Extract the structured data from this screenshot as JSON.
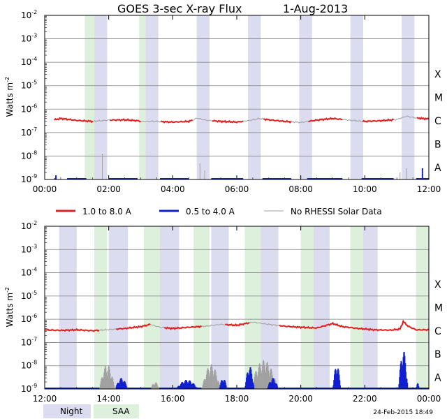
{
  "title": "GOES 3-sec X-ray Flux",
  "date": "1-Aug-2013",
  "generated": "24-Feb-2015 18:49",
  "ylabel_main": "Watts m",
  "ylabel_exp": "-2",
  "legend": {
    "items": [
      {
        "label": "1.0 to 8.0 A",
        "color": "#e02020"
      },
      {
        "label": "0.5 to 4.0 A",
        "color": "#1020d0"
      },
      {
        "label": "No RHESSI Solar Data",
        "color": "#a0a0a0"
      }
    ],
    "bottom_items": [
      {
        "label": "Night",
        "color": "#dcdcf0"
      },
      {
        "label": "SAA",
        "color": "#dcf0dc"
      }
    ]
  },
  "classes": [
    "X",
    "M",
    "C",
    "B",
    "A"
  ],
  "colors": {
    "night": "#dcdcf0",
    "saa": "#dcf0dc",
    "long": "#e02020",
    "short": "#1020d0",
    "nodata": "#a0a0a0",
    "grid": "#808080"
  },
  "chart_data": [
    {
      "type": "line",
      "xlim_hours": [
        0,
        12
      ],
      "x_ticks": [
        "00:00",
        "02:00",
        "04:00",
        "06:00",
        "08:00",
        "10:00",
        "12:00"
      ],
      "y_scale": "log",
      "ylim": [
        1e-09,
        0.01
      ],
      "y_tick_exponents": [
        -2,
        -3,
        -4,
        -5,
        -6,
        -7,
        -8,
        -9
      ],
      "night_hours": [
        [
          1.55,
          1.95
        ],
        [
          3.15,
          3.55
        ],
        [
          4.75,
          5.15
        ],
        [
          6.35,
          6.75
        ],
        [
          7.95,
          8.35
        ],
        [
          9.55,
          9.95
        ],
        [
          11.15,
          11.55
        ]
      ],
      "saa_hours": [
        [
          1.25,
          1.55
        ],
        [
          2.95,
          3.15
        ]
      ],
      "long_series": [
        {
          "x": 0.3,
          "y": 3.5e-07
        },
        {
          "x": 0.5,
          "y": 4e-07
        },
        {
          "x": 1.0,
          "y": 3.3e-07
        },
        {
          "x": 1.5,
          "y": 3e-07
        },
        {
          "x": 2.0,
          "y": 3.4e-07
        },
        {
          "x": 2.5,
          "y": 3.5e-07
        },
        {
          "x": 2.9,
          "y": 3.2e-07
        },
        {
          "x": 3.0,
          "y": 3e-07
        },
        {
          "x": 3.5,
          "y": 3e-07
        },
        {
          "x": 4.0,
          "y": 2.8e-07
        },
        {
          "x": 4.5,
          "y": 3e-07
        },
        {
          "x": 4.65,
          "y": 3.5e-07
        },
        {
          "x": 4.75,
          "y": 4.2e-07
        },
        {
          "x": 5.0,
          "y": 3.4e-07
        },
        {
          "x": 5.5,
          "y": 3e-07
        },
        {
          "x": 6.0,
          "y": 2.8e-07
        },
        {
          "x": 6.4,
          "y": 3.3e-07
        },
        {
          "x": 6.7,
          "y": 4e-07
        },
        {
          "x": 7.0,
          "y": 3.5e-07
        },
        {
          "x": 7.5,
          "y": 3e-07
        },
        {
          "x": 8.0,
          "y": 2.7e-07
        },
        {
          "x": 8.5,
          "y": 3.4e-07
        },
        {
          "x": 9.0,
          "y": 4e-07
        },
        {
          "x": 9.5,
          "y": 3.4e-07
        },
        {
          "x": 10.0,
          "y": 3e-07
        },
        {
          "x": 10.5,
          "y": 3.2e-07
        },
        {
          "x": 11.0,
          "y": 3.6e-07
        },
        {
          "x": 11.3,
          "y": 5e-07
        },
        {
          "x": 11.6,
          "y": 4.2e-07
        },
        {
          "x": 12.0,
          "y": 3.8e-07
        }
      ],
      "nodata_spans_hours": [
        [
          1.5,
          2.0
        ],
        [
          3.0,
          3.6
        ],
        [
          4.6,
          5.2
        ],
        [
          6.2,
          6.8
        ],
        [
          7.7,
          8.2
        ],
        [
          9.3,
          9.9
        ],
        [
          10.9,
          11.6
        ]
      ],
      "short_segments": [
        [
          0.3,
          0.35
        ],
        [
          0.7,
          1.3
        ],
        [
          2.0,
          2.9
        ],
        [
          3.6,
          4.5
        ],
        [
          5.2,
          6.2
        ],
        [
          6.8,
          7.7
        ],
        [
          8.2,
          9.3
        ],
        [
          9.9,
          10.9
        ],
        [
          11.6,
          12.0
        ]
      ],
      "short_spikes": [
        {
          "x": 0.35,
          "y": 1.5e-09
        },
        {
          "x": 11.8,
          "y": 3e-09
        }
      ],
      "nodata_spikes": [
        {
          "x": 1.8,
          "y": 1.2e-08
        },
        {
          "x": 4.85,
          "y": 5e-09
        },
        {
          "x": 5.0,
          "y": 2.5e-09
        },
        {
          "x": 11.1,
          "y": 2e-09
        },
        {
          "x": 11.3,
          "y": 3e-09
        }
      ]
    },
    {
      "type": "line",
      "xlim_hours": [
        12,
        24
      ],
      "x_ticks": [
        "12:00",
        "14:00",
        "16:00",
        "18:00",
        "20:00",
        "22:00",
        "00:00"
      ],
      "y_scale": "log",
      "ylim": [
        1e-09,
        0.01
      ],
      "y_tick_exponents": [
        -2,
        -3,
        -4,
        -5,
        -6,
        -7,
        -8,
        -9
      ],
      "night_hours": [
        [
          12.45,
          13.0
        ],
        [
          14.0,
          14.6
        ],
        [
          15.6,
          16.2
        ],
        [
          17.2,
          17.75
        ],
        [
          18.75,
          19.3
        ],
        [
          20.35,
          20.9
        ],
        [
          21.95,
          22.4
        ]
      ],
      "saa_hours": [
        [
          13.55,
          13.95
        ],
        [
          15.1,
          15.6
        ],
        [
          16.65,
          17.15
        ],
        [
          18.25,
          18.75
        ],
        [
          20.0,
          20.4
        ],
        [
          21.55,
          21.95
        ],
        [
          23.6,
          24.0
        ]
      ],
      "long_series": [
        {
          "x": 12.0,
          "y": 3.5e-07
        },
        {
          "x": 12.5,
          "y": 3.3e-07
        },
        {
          "x": 13.0,
          "y": 3.5e-07
        },
        {
          "x": 13.5,
          "y": 3.2e-07
        },
        {
          "x": 14.0,
          "y": 3.6e-07
        },
        {
          "x": 14.5,
          "y": 4e-07
        },
        {
          "x": 15.0,
          "y": 4.8e-07
        },
        {
          "x": 15.3,
          "y": 6e-07
        },
        {
          "x": 15.6,
          "y": 4.5e-07
        },
        {
          "x": 16.0,
          "y": 4e-07
        },
        {
          "x": 16.5,
          "y": 4.5e-07
        },
        {
          "x": 17.0,
          "y": 5e-07
        },
        {
          "x": 17.5,
          "y": 6e-07
        },
        {
          "x": 18.0,
          "y": 5.5e-07
        },
        {
          "x": 18.5,
          "y": 7.5e-07
        },
        {
          "x": 19.0,
          "y": 6e-07
        },
        {
          "x": 19.5,
          "y": 5e-07
        },
        {
          "x": 20.0,
          "y": 4.5e-07
        },
        {
          "x": 20.5,
          "y": 4.2e-07
        },
        {
          "x": 21.0,
          "y": 6.5e-07
        },
        {
          "x": 21.3,
          "y": 4.8e-07
        },
        {
          "x": 21.8,
          "y": 4e-07
        },
        {
          "x": 22.3,
          "y": 3.5e-07
        },
        {
          "x": 22.8,
          "y": 3.4e-07
        },
        {
          "x": 23.1,
          "y": 3.8e-07
        },
        {
          "x": 23.2,
          "y": 8e-07
        },
        {
          "x": 23.35,
          "y": 5e-07
        },
        {
          "x": 23.6,
          "y": 3.5e-07
        },
        {
          "x": 24.0,
          "y": 3.5e-07
        }
      ],
      "nodata_spans_hours": [
        [
          13.7,
          14.2
        ],
        [
          15.3,
          15.7
        ],
        [
          16.9,
          17.6
        ],
        [
          18.4,
          19.3
        ]
      ],
      "short_segments": [
        [
          12.0,
          13.8
        ],
        [
          14.3,
          16.9
        ],
        [
          17.6,
          18.4
        ],
        [
          19.3,
          24.0
        ]
      ],
      "short_bursts": [
        {
          "x0": 14.2,
          "x1": 14.6,
          "peak": 3e-09
        },
        {
          "x0": 16.1,
          "x1": 16.8,
          "peak": 2.5e-09
        },
        {
          "x0": 17.45,
          "x1": 17.7,
          "peak": 3e-09
        },
        {
          "x0": 18.25,
          "x1": 18.55,
          "peak": 1e-08
        },
        {
          "x0": 18.95,
          "x1": 19.3,
          "peak": 3e-09
        },
        {
          "x0": 21.0,
          "x1": 21.25,
          "peak": 1.2e-08
        },
        {
          "x0": 23.05,
          "x1": 23.35,
          "peak": 5e-08
        },
        {
          "x0": 23.6,
          "x1": 23.7,
          "peak": 1.8e-09
        }
      ],
      "nodata_bursts": [
        {
          "x0": 13.7,
          "x1": 14.2,
          "peak": 1.2e-08
        },
        {
          "x0": 15.3,
          "x1": 15.6,
          "peak": 2e-09
        },
        {
          "x0": 16.9,
          "x1": 17.5,
          "peak": 1.2e-08
        },
        {
          "x0": 18.4,
          "x1": 19.3,
          "peak": 1.8e-08
        }
      ]
    }
  ]
}
